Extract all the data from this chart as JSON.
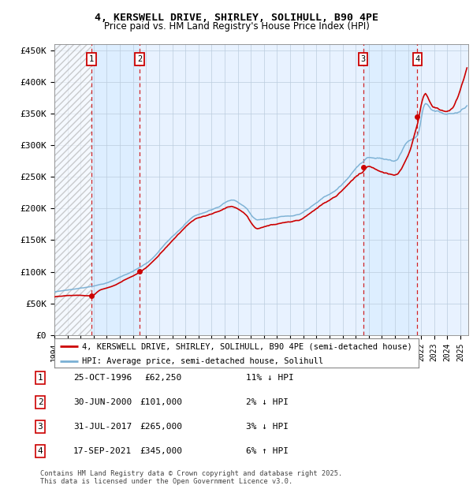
{
  "title_line1": "4, KERSWELL DRIVE, SHIRLEY, SOLIHULL, B90 4PE",
  "title_line2": "Price paid vs. HM Land Registry's House Price Index (HPI)",
  "ylim": [
    0,
    460000
  ],
  "yticks": [
    0,
    50000,
    100000,
    150000,
    200000,
    250000,
    300000,
    350000,
    400000,
    450000
  ],
  "ytick_labels": [
    "£0",
    "£50K",
    "£100K",
    "£150K",
    "£200K",
    "£250K",
    "£300K",
    "£350K",
    "£400K",
    "£450K"
  ],
  "sale_times": [
    1996.82,
    2000.5,
    2017.58,
    2021.71
  ],
  "sale_prices": [
    62250,
    101000,
    265000,
    345000
  ],
  "sale_labels": [
    "1",
    "2",
    "3",
    "4"
  ],
  "red_line_color": "#cc0000",
  "blue_line_color": "#7ab0d4",
  "grid_color": "#bbccdd",
  "vline_color": "#cc0000",
  "bg_color": "#ddeeff",
  "bg_light_color": "#e8f2ff",
  "legend_line1": "4, KERSWELL DRIVE, SHIRLEY, SOLIHULL, B90 4PE (semi-detached house)",
  "legend_line2": "HPI: Average price, semi-detached house, Solihull",
  "table_entries": [
    {
      "num": "1",
      "date": "25-OCT-1996",
      "price": "£62,250",
      "hpi": "11% ↓ HPI"
    },
    {
      "num": "2",
      "date": "30-JUN-2000",
      "price": "£101,000",
      "hpi": "2% ↓ HPI"
    },
    {
      "num": "3",
      "date": "31-JUL-2017",
      "price": "£265,000",
      "hpi": "3% ↓ HPI"
    },
    {
      "num": "4",
      "date": "17-SEP-2021",
      "price": "£345,000",
      "hpi": "6% ↑ HPI"
    }
  ],
  "footer": "Contains HM Land Registry data © Crown copyright and database right 2025.\nThis data is licensed under the Open Government Licence v3.0."
}
